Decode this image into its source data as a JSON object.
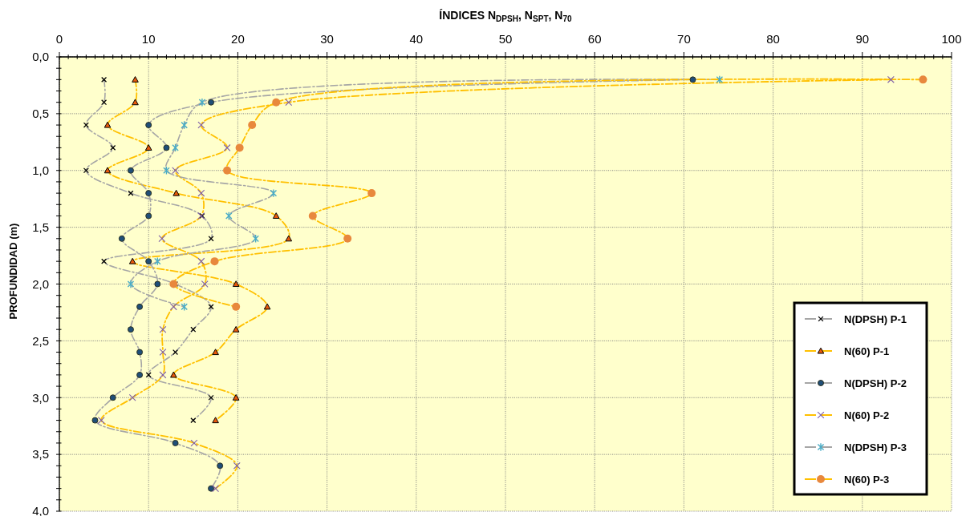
{
  "chart_data": {
    "type": "line",
    "xlabel": "ÍNDICES N$_{DPSH}$, N$_{SPT}$, N$_{70}$",
    "ylabel": "PROFUNDIDAD (m)",
    "xlim": [
      0,
      100
    ],
    "xticks": [
      0,
      {
        "value": 1,
        "label": null
      },
      {
        "value": 2,
        "label": null
      },
      {
        "value": 3,
        "label": null
      },
      {
        "value": 4,
        "label": null
      },
      {
        "value": 5,
        "label": null
      },
      {
        "value": 6,
        "label": null
      },
      {
        "value": 7,
        "label": null
      },
      {
        "value": 8,
        "label": null
      },
      {
        "value": 9,
        "label": null
      },
      10,
      {
        "value": 11,
        "label": null
      },
      {
        "value": 12,
        "label": null
      },
      {
        "value": 13,
        "label": null
      },
      {
        "value": 14,
        "label": null
      },
      {
        "value": 15,
        "label": null
      },
      {
        "value": 16,
        "label": null
      },
      {
        "value": 17,
        "label": null
      },
      {
        "value": 18,
        "label": null
      },
      {
        "value": 19,
        "label": null
      },
      20,
      {
        "value": 21,
        "label": null
      },
      {
        "value": 22,
        "label": null
      },
      {
        "value": 23,
        "label": null
      },
      {
        "value": 24,
        "label": null
      },
      {
        "value": 25,
        "label": null
      },
      {
        "value": 26,
        "label": null
      },
      {
        "value": 27,
        "label": null
      },
      {
        "value": 28,
        "label": null
      },
      {
        "value": 29,
        "label": null
      },
      30,
      {
        "value": 31,
        "label": null
      },
      {
        "value": 32,
        "label": null
      },
      {
        "value": 33,
        "label": null
      },
      {
        "value": 34,
        "label": null
      },
      {
        "value": 35,
        "label": null
      },
      {
        "value": 36,
        "label": null
      },
      {
        "value": 37,
        "label": null
      },
      {
        "value": 38,
        "label": null
      },
      {
        "value": 39,
        "label": null
      },
      40,
      {
        "value": 41,
        "label": null
      },
      {
        "value": 42,
        "label": null
      },
      {
        "value": 43,
        "label": null
      },
      {
        "value": 44,
        "label": null
      },
      {
        "value": 45,
        "label": null
      },
      {
        "value": 46,
        "label": null
      },
      {
        "value": 47,
        "label": null
      },
      {
        "value": 48,
        "label": null
      },
      {
        "value": 49,
        "label": null
      },
      50,
      {
        "value": 51,
        "label": null
      },
      {
        "value": 52,
        "label": null
      },
      {
        "value": 53,
        "label": null
      },
      {
        "value": 54,
        "label": null
      },
      {
        "value": 55,
        "label": null
      },
      {
        "value": 56,
        "label": null
      },
      {
        "value": 57,
        "label": null
      },
      {
        "value": 58,
        "label": null
      },
      {
        "value": 59,
        "label": null
      },
      60,
      {
        "value": 61,
        "label": null
      },
      {
        "value": 62,
        "label": null
      },
      {
        "value": 63,
        "label": null
      },
      {
        "value": 64,
        "label": null
      },
      {
        "value": 65,
        "label": null
      },
      {
        "value": 66,
        "label": null
      },
      {
        "value": 67,
        "label": null
      },
      {
        "value": 68,
        "label": null
      },
      {
        "value": 69,
        "label": null
      },
      70,
      {
        "value": 71,
        "label": null
      },
      {
        "value": 72,
        "label": null
      },
      {
        "value": 73,
        "label": null
      },
      {
        "value": 74,
        "label": null
      },
      {
        "value": 75,
        "label": null
      },
      {
        "value": 76,
        "label": null
      },
      {
        "value": 77,
        "label": null
      },
      {
        "value": 78,
        "label": null
      },
      {
        "value": 79,
        "label": null
      },
      80,
      {
        "value": 81,
        "label": null
      },
      {
        "value": 82,
        "label": null
      },
      {
        "value": 83,
        "label": null
      },
      {
        "value": 84,
        "label": null
      },
      {
        "value": 85,
        "label": null
      },
      {
        "value": 86,
        "label": null
      },
      {
        "value": 87,
        "label": null
      },
      {
        "value": 88,
        "label": null
      },
      {
        "value": 89,
        "label": null
      },
      90,
      {
        "value": 91,
        "label": null
      },
      {
        "value": 92,
        "label": null
      },
      {
        "value": 93,
        "label": null
      },
      {
        "value": 94,
        "label": null
      },
      {
        "value": 95,
        "label": null
      },
      {
        "value": 96,
        "label": null
      },
      {
        "value": 97,
        "label": null
      },
      {
        "value": 98,
        "label": null
      },
      {
        "value": 99,
        "label": null
      },
      100
    ],
    "ylim": [
      4,
      0
    ],
    "yticks": [
      {
        "value": 0,
        "label": "0,0"
      },
      {
        "value": 0.1,
        "label": null
      },
      {
        "value": 0.2,
        "label": null
      },
      {
        "value": 0.3,
        "label": null
      },
      {
        "value": 0.4,
        "label": null
      },
      {
        "value": 0.5,
        "label": "0,5"
      },
      {
        "value": 0.6,
        "label": null
      },
      {
        "value": 0.7,
        "label": null
      },
      {
        "value": 0.8,
        "label": null
      },
      {
        "value": 0.9,
        "label": null
      },
      {
        "value": 1,
        "label": "1,0"
      },
      {
        "value": 1.1,
        "label": null
      },
      {
        "value": 1.2,
        "label": null
      },
      {
        "value": 1.3,
        "label": null
      },
      {
        "value": 1.4,
        "label": null
      },
      {
        "value": 1.5,
        "label": "1,5"
      },
      {
        "value": 1.6,
        "label": null
      },
      {
        "value": 1.7,
        "label": null
      },
      {
        "value": 1.8,
        "label": null
      },
      {
        "value": 1.9,
        "label": null
      },
      {
        "value": 2,
        "label": "2,0"
      },
      {
        "value": 2.1,
        "label": null
      },
      {
        "value": 2.2,
        "label": null
      },
      {
        "value": 2.3,
        "label": null
      },
      {
        "value": 2.4,
        "label": null
      },
      {
        "value": 2.5,
        "label": "2,5"
      },
      {
        "value": 2.6,
        "label": null
      },
      {
        "value": 2.7,
        "label": null
      },
      {
        "value": 2.8,
        "label": null
      },
      {
        "value": 2.9,
        "label": null
      },
      {
        "value": 3,
        "label": "3,0"
      },
      {
        "value": 3.1,
        "label": null
      },
      {
        "value": 3.2,
        "label": null
      },
      {
        "value": 3.3,
        "label": null
      },
      {
        "value": 3.4,
        "label": null
      },
      {
        "value": 3.5,
        "label": "3,5"
      },
      {
        "value": 3.6,
        "label": null
      },
      {
        "value": 3.7,
        "label": null
      },
      {
        "value": 3.8,
        "label": null
      },
      {
        "value": 3.9,
        "label": null
      },
      {
        "value": 4,
        "label": "4,0"
      }
    ],
    "grid": true,
    "legend": "bottom right",
    "line_style": "dashed",
    "series": [
      {
        "name": "N(DPSH) P-1",
        "color": "#a6a6a6",
        "marker": "cross",
        "colors": [
          "#000000",
          "#000000",
          "#000000",
          "#000000",
          "#000000",
          "#000000",
          "#000000",
          "#000000",
          "#000000",
          "#000000",
          "#000000",
          "#000000",
          "#000000",
          "#000000",
          "#000000",
          "#000000"
        ],
        "x": [
          5,
          5,
          3,
          6,
          3,
          8,
          16,
          17,
          5,
          13,
          17,
          15,
          13,
          10,
          17,
          15
        ],
        "values": [
          0.2,
          0.4,
          0.6,
          0.8,
          1,
          1.2,
          1.4,
          1.6,
          1.8,
          2,
          2.2,
          2.4,
          2.6,
          2.8,
          3,
          3.2
        ]
      },
      {
        "name": "N(60) P-1",
        "color": "#ffc000",
        "marker": "triangle",
        "colors": [
          "#e8590c",
          "#e8590c",
          "#e8590c",
          "#e8590c",
          "#e8590c",
          "#e8590c",
          "#e8590c",
          "#e8590c",
          "#e8590c",
          "#e8590c",
          "#e8590c",
          "#e8590c",
          "#e8590c",
          "#e8590c",
          "#e8590c",
          "#e8590c"
        ],
        "x": [
          8.5,
          8.5,
          5.4,
          10,
          5.4,
          13.1,
          24.3,
          25.7,
          8.2,
          19.8,
          23.3,
          19.8,
          17.5,
          12.8,
          19.8,
          17.5
        ],
        "values": [
          0.2,
          0.4,
          0.6,
          0.8,
          1,
          1.2,
          1.4,
          1.6,
          1.8,
          2,
          2.2,
          2.4,
          2.6,
          2.8,
          3,
          3.2
        ]
      },
      {
        "name": "N(DPSH) P-2",
        "color": "#a6a6a6",
        "marker": "circle",
        "colors": [
          "#1f4e79",
          "#1f4e79",
          "#1f4e79",
          "#1f4e79",
          "#1f4e79",
          "#1f4e79",
          "#1f4e79",
          "#1f4e79",
          "#1f4e79",
          "#1f4e79",
          "#1f4e79",
          "#1f4e79",
          "#1f4e79",
          "#1f4e79",
          "#1f4e79",
          "#1f4e79",
          "#1f4e79",
          "#1f4e79",
          "#1f4e79"
        ],
        "x": [
          71,
          17,
          10,
          12,
          8,
          10,
          10,
          7,
          10,
          11,
          9,
          8,
          9,
          9,
          6,
          4,
          13,
          18,
          17
        ],
        "values": [
          0.2,
          0.4,
          0.6,
          0.8,
          1,
          1.2,
          1.4,
          1.6,
          1.8,
          2,
          2.2,
          2.4,
          2.6,
          2.8,
          3,
          3.2,
          3.4,
          3.6,
          3.8
        ]
      },
      {
        "name": "N(60) P-2",
        "color": "#ffc000",
        "marker": "cross",
        "colors": [
          "#7f5fa8",
          "#7f5fa8",
          "#7f5fa8",
          "#7f5fa8",
          "#7f5fa8",
          "#7f5fa8",
          "#7f5fa8",
          "#7f5fa8",
          "#7f5fa8",
          "#7f5fa8",
          "#7f5fa8",
          "#7f5fa8",
          "#7f5fa8",
          "#7f5fa8",
          "#7f5fa8",
          "#7f5fa8",
          "#7f5fa8",
          "#7f5fa8",
          "#7f5fa8"
        ],
        "x": [
          93.2,
          25.7,
          15.9,
          18.8,
          13,
          15.9,
          15.9,
          11.5,
          15.9,
          16.3,
          12.8,
          11.6,
          11.6,
          11.6,
          8.2,
          4.7,
          15.1,
          19.9,
          17.5
        ],
        "values": [
          0.2,
          0.4,
          0.6,
          0.8,
          1,
          1.2,
          1.4,
          1.6,
          1.8,
          2,
          2.2,
          2.4,
          2.6,
          2.8,
          3,
          3.2,
          3.4,
          3.6,
          3.8
        ]
      },
      {
        "name": "N(DPSH) P-3",
        "color": "#a6a6a6",
        "marker": "cross",
        "colors": [
          "#4aacc6",
          "#4aacc6",
          "#4aacc6",
          "#4aacc6",
          "#4aacc6",
          "#4aacc6",
          "#4aacc6",
          "#4aacc6",
          "#4aacc6",
          "#4aacc6",
          "#4aacc6"
        ],
        "x": [
          74,
          16,
          14,
          13,
          12,
          24,
          19,
          22,
          11,
          8,
          14
        ],
        "values": [
          0.2,
          0.4,
          0.6,
          0.8,
          1,
          1.2,
          1.4,
          1.6,
          1.8,
          2,
          2.2
        ]
      },
      {
        "name": "N(60) P-3",
        "color": "#ffc000",
        "marker": "circle",
        "colors": [
          "#e8883d",
          "#e8883d",
          "#e8883d",
          "#e8883d",
          "#e8883d",
          "#e8883d",
          "#e8883d",
          "#e8883d",
          "#e8883d",
          "#e8883d",
          "#e8883d"
        ],
        "x": [
          96.8,
          24.3,
          21.6,
          20.2,
          18.8,
          35,
          28.4,
          32.3,
          17.4,
          12.8,
          19.8
        ],
        "values": [
          0.2,
          0.4,
          0.6,
          0.8,
          1,
          1.2,
          1.4,
          1.6,
          1.8,
          2,
          2.2
        ]
      }
    ]
  }
}
